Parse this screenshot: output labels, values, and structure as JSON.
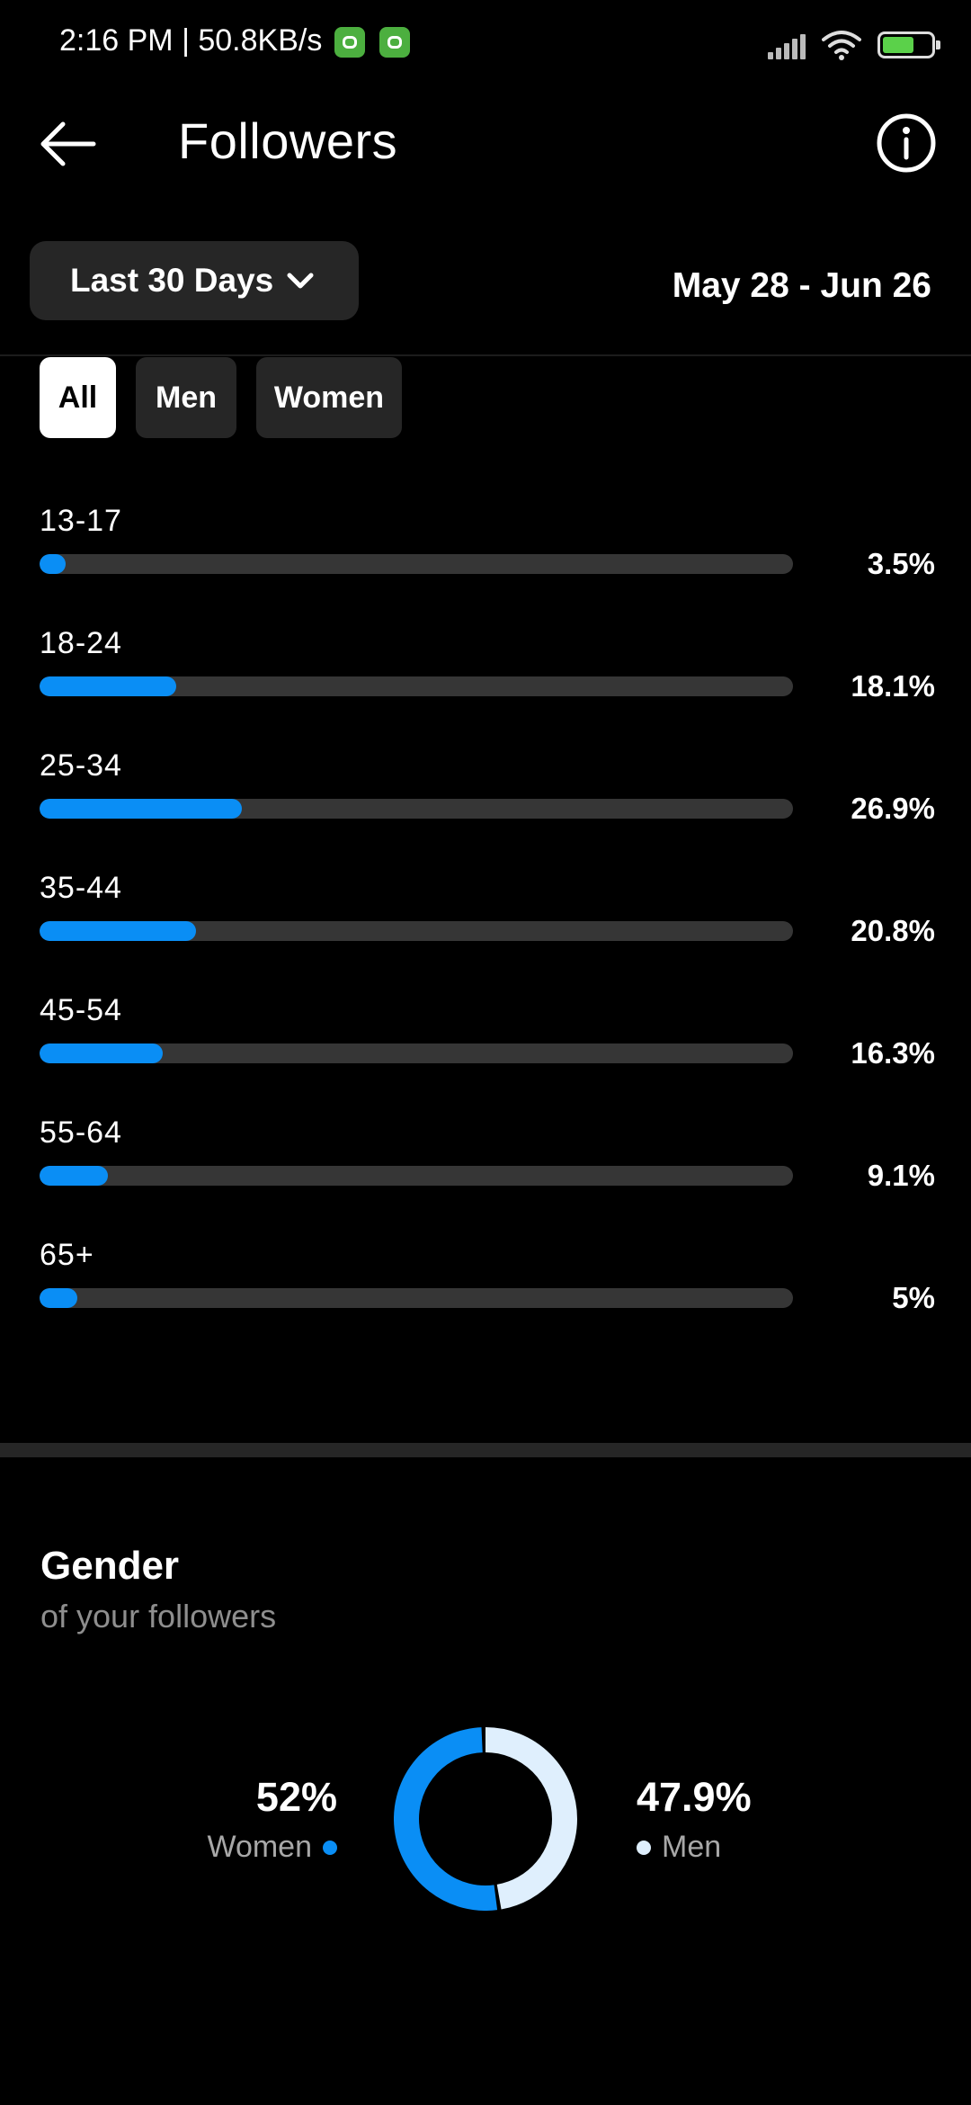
{
  "status_bar": {
    "time_speed": "2:16 PM | 50.8KB/s"
  },
  "header": {
    "title": "Followers"
  },
  "filters": {
    "range_label": "Last 30 Days",
    "date_range": "May 28 - Jun 26",
    "chips": [
      "All",
      "Men",
      "Women"
    ],
    "active_chip": "All"
  },
  "age_groups": [
    {
      "label": "13-17",
      "pct_text": "3.5%",
      "value": 3.5
    },
    {
      "label": "18-24",
      "pct_text": "18.1%",
      "value": 18.1
    },
    {
      "label": "25-34",
      "pct_text": "26.9%",
      "value": 26.9
    },
    {
      "label": "35-44",
      "pct_text": "20.8%",
      "value": 20.8
    },
    {
      "label": "45-54",
      "pct_text": "16.3%",
      "value": 16.3
    },
    {
      "label": "55-64",
      "pct_text": "9.1%",
      "value": 9.1
    },
    {
      "label": "65+",
      "pct_text": "5%",
      "value": 5
    }
  ],
  "gender": {
    "title": "Gender",
    "subtitle": "of your followers",
    "women": {
      "pct_text": "52%",
      "label": "Women",
      "value": 52,
      "color": "#0a8ef5"
    },
    "men": {
      "pct_text": "47.9%",
      "label": "Men",
      "value": 47.9,
      "color": "#dfeffd"
    }
  },
  "colors": {
    "accent": "#0a8ef5",
    "track": "#363636",
    "chip_bg": "#262626"
  }
}
